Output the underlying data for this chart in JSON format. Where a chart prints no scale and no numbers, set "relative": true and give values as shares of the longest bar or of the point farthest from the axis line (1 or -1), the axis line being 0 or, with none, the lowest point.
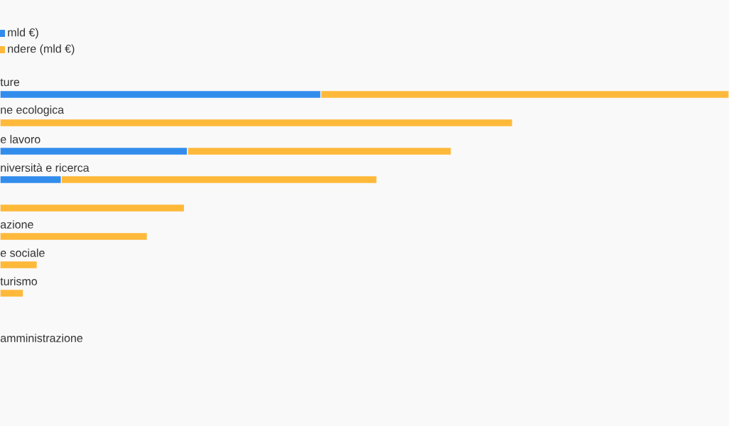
{
  "chart_data": {
    "type": "bar",
    "orientation": "horizontal",
    "stacked": true,
    "relative": true,
    "legend": "top left",
    "categories": [
      "ture",
      "ne ecologica",
      "e lavoro",
      "niversità e ricerca",
      null,
      "azione",
      "e sociale",
      "turismo",
      null,
      "amministrazione"
    ],
    "series": [
      {
        "name": "mld €)",
        "color": "#328cec",
        "values": [
          0.44,
          0,
          0.257,
          0.084,
          0,
          0,
          0,
          0,
          null,
          null
        ]
      },
      {
        "name": "ndere (mld €)",
        "color": "#ffb93a",
        "values": [
          0.56,
          0.703,
          0.362,
          0.433,
          0.253,
          0.202,
          0.051,
          0.032,
          null,
          null
        ]
      }
    ]
  }
}
